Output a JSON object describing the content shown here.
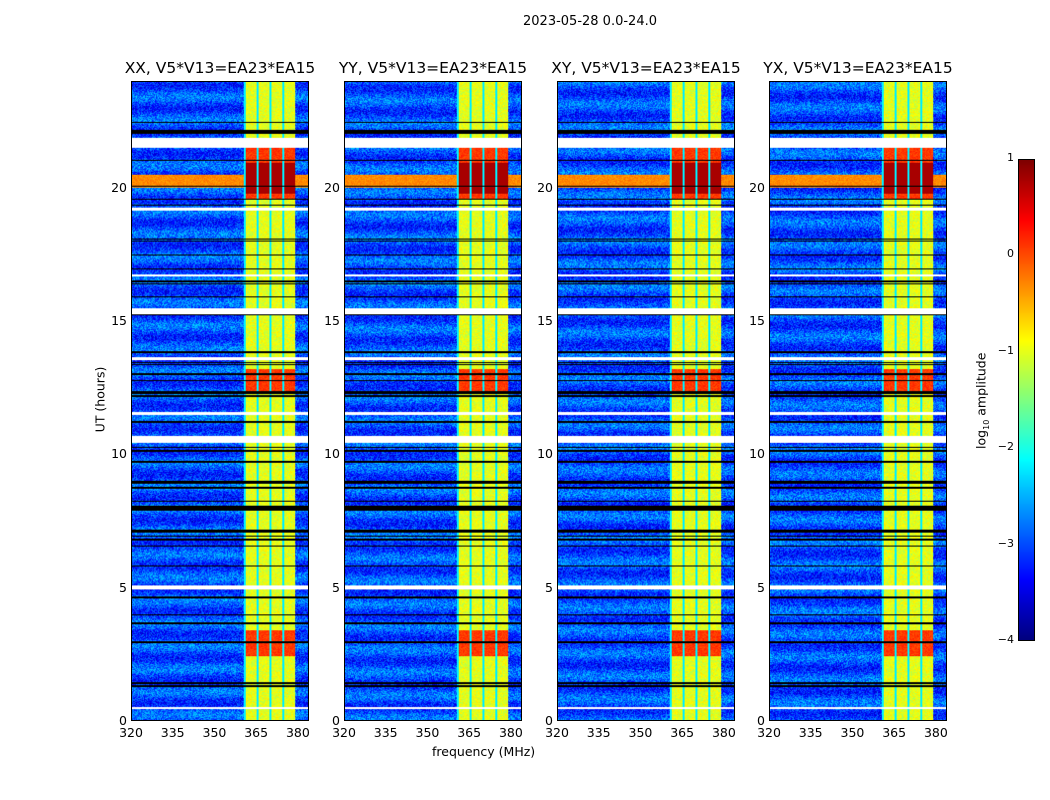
{
  "figure": {
    "suptitle": "2023-05-28 0.0-24.0"
  },
  "chart_data": {
    "type": "heatmap",
    "panels": [
      {
        "title": "XX, V5*V13=EA23*EA15"
      },
      {
        "title": "YY, V5*V13=EA23*EA15"
      },
      {
        "title": "XY, V5*V13=EA23*EA15"
      },
      {
        "title": "YX, V5*V13=EA23*EA15"
      }
    ],
    "xlabel": "frequency (MHz)",
    "ylabel": "UT (hours)",
    "xlim": [
      320,
      384
    ],
    "ylim": [
      0,
      24
    ],
    "xticks": [
      "320",
      "335",
      "350",
      "365",
      "380"
    ],
    "xtick_values": [
      320,
      335,
      350,
      365,
      380
    ],
    "yticks": [
      "0",
      "5",
      "10",
      "15",
      "20"
    ],
    "ytick_values": [
      0,
      5,
      10,
      15,
      20
    ],
    "colorbar": {
      "label": "log10 amplitude",
      "label_main": "log",
      "label_sub": "10",
      "label_rest": " amplitude",
      "range": [
        -4,
        1
      ],
      "ticks": [
        "1",
        "0",
        "−1",
        "−2",
        "−3",
        "−4"
      ],
      "tick_values": [
        1,
        0,
        -1,
        -2,
        -3,
        -4
      ],
      "colormap": "jet"
    },
    "background_log_amplitude": -3,
    "rfi_band_mhz": [
      360.5,
      380
    ],
    "rfi_band_log_amplitude": -1,
    "bright_intervals_hours": [
      [
        19.6,
        21.6
      ],
      [
        12.4,
        13.2
      ],
      [
        2.4,
        3.4
      ]
    ],
    "flagged_white_hours": [
      [
        21.55,
        21.9
      ],
      [
        15.3,
        15.5
      ],
      [
        10.45,
        10.7
      ],
      [
        11.5,
        11.62
      ],
      [
        4.95,
        5.1
      ],
      [
        0.45,
        0.5
      ],
      [
        13.55,
        13.65
      ],
      [
        19.2,
        19.3
      ],
      [
        16.7,
        16.78
      ]
    ]
  }
}
